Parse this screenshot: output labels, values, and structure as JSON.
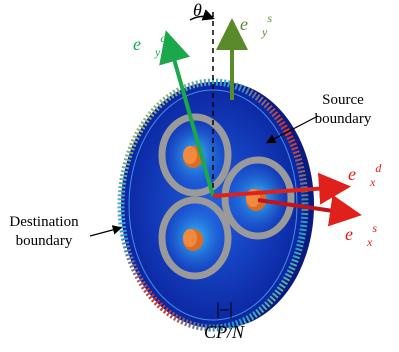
{
  "theta": "θ",
  "e_y_d": {
    "base": "e⃗",
    "sub": "y",
    "sup": "d"
  },
  "e_y_s": {
    "base": "e⃗",
    "sub": "y",
    "sup": "s"
  },
  "e_x_d": {
    "base": "e⃗",
    "sub": "x",
    "sup": "d"
  },
  "e_x_s": {
    "base": "e⃗",
    "sub": "x",
    "sup": "s"
  },
  "source_boundary": [
    "Source",
    "boundary"
  ],
  "destination_boundary": [
    "Destination",
    "boundary"
  ],
  "cp_n": "CP/N"
}
